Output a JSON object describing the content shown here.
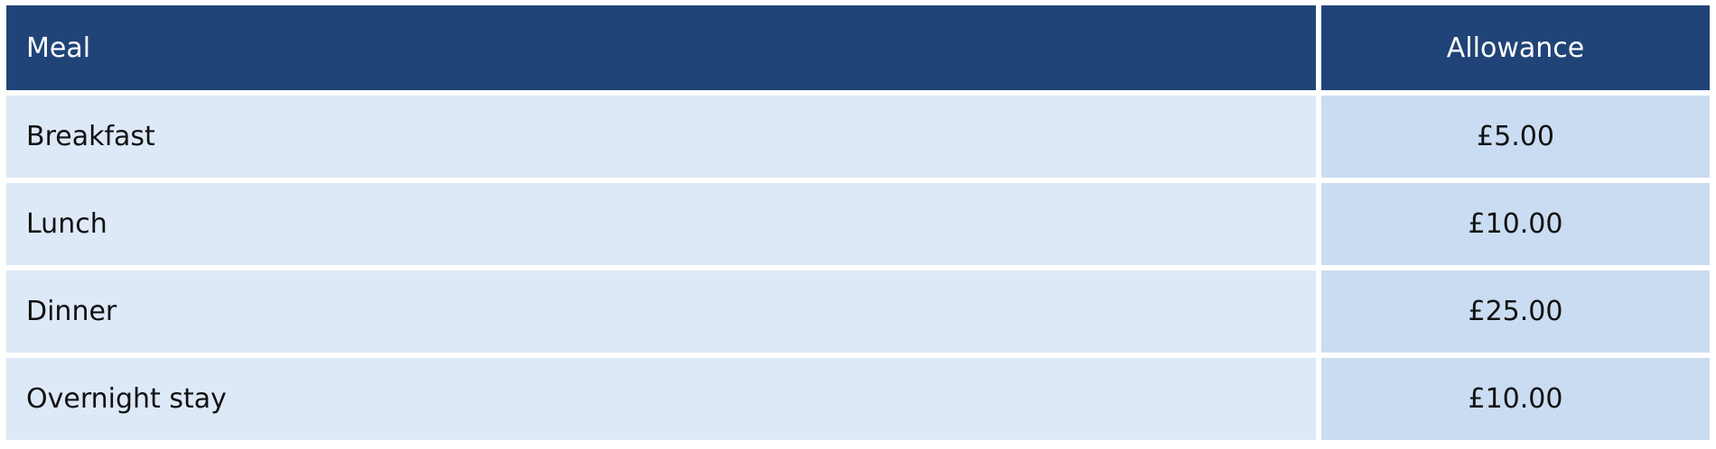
{
  "table": {
    "headers": [
      "Meal",
      "Allowance"
    ],
    "rows": [
      {
        "meal": "Breakfast",
        "allowance": "£5.00"
      },
      {
        "meal": "Lunch",
        "allowance": "£10.00"
      },
      {
        "meal": "Dinner",
        "allowance": "£25.00"
      },
      {
        "meal": "Overnight stay",
        "allowance": "£10.00"
      }
    ]
  },
  "colors": {
    "header_bg": "#204477",
    "row_bg": "#dde9f7",
    "allowance_bg": "#c9dcf1"
  }
}
